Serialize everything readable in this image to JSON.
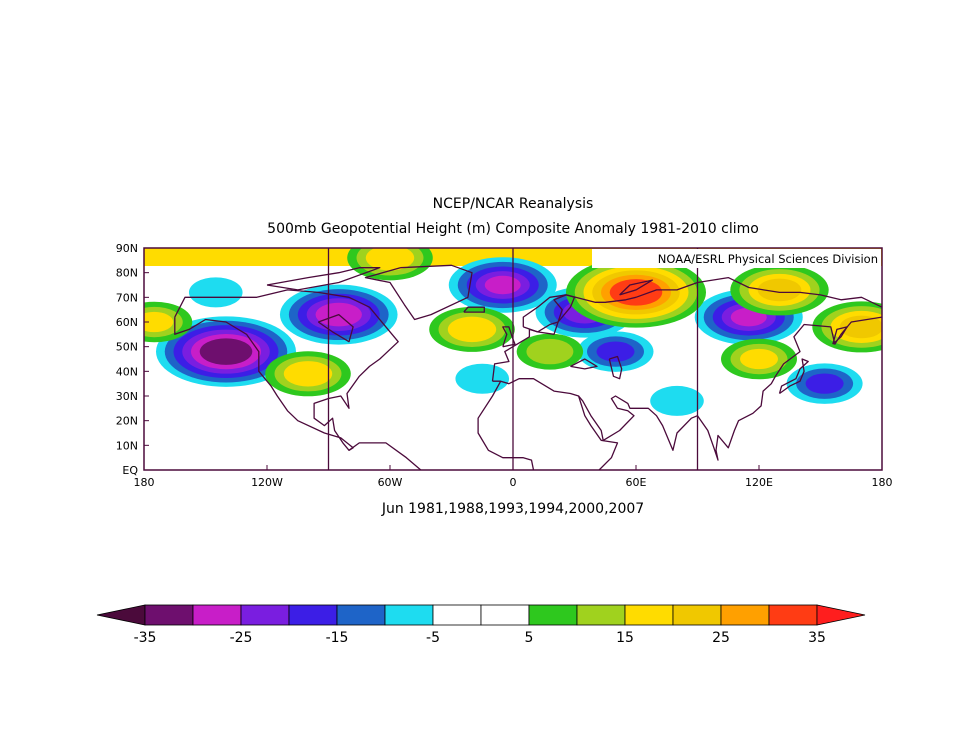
{
  "title": {
    "line1": "NCEP/NCAR Reanalysis",
    "line2": "500mb Geopotential Height (m) Composite Anomaly 1981-2010 climo"
  },
  "credit": "NOAA/ESRL Physical Sciences Division",
  "subtitle": "Jun 1981,1988,1993,1994,2000,2007",
  "map": {
    "lon_range": [
      -180,
      180
    ],
    "lat_range": [
      0,
      90
    ],
    "lat_labels": [
      "EQ",
      "10N",
      "20N",
      "30N",
      "40N",
      "50N",
      "60N",
      "70N",
      "80N",
      "90N"
    ],
    "lat_values": [
      0,
      10,
      20,
      30,
      40,
      50,
      60,
      70,
      80,
      90
    ],
    "lon_labels": [
      "180",
      "120W",
      "60W",
      "0",
      "60E",
      "120E",
      "180"
    ],
    "lon_values": [
      -180,
      -120,
      -60,
      0,
      60,
      120,
      180
    ],
    "reference_meridians": [
      -90,
      0,
      90
    ],
    "frame_color": "#4b0a3b",
    "coast_color": "#4b0a3b"
  },
  "colorbar": {
    "labels": [
      "-35",
      "-25",
      "-15",
      "-5",
      "5",
      "15",
      "25",
      "35"
    ],
    "colors": [
      "#6e0f6e",
      "#c81ec8",
      "#7a1ee0",
      "#3c1ee6",
      "#1e64c8",
      "#1edcf0",
      "#ffffff",
      "#ffffff",
      "#2ec81e",
      "#a0d21e",
      "#ffdc00",
      "#f0c800",
      "#ffa000",
      "#ff3c14"
    ],
    "low_arrow_color": "#4b0a3b",
    "high_arrow_color": "#ff1e1e"
  },
  "chart_data": {
    "type": "heatmap",
    "variable": "500mb Geopotential Height (m) Composite Anomaly",
    "units": "m",
    "color_scale": {
      "min": -35,
      "max": 35,
      "step": 5
    },
    "features": [
      {
        "kind": "negative_anomaly",
        "lon": -140,
        "lat": 48,
        "value": -35
      },
      {
        "kind": "negative_anomaly",
        "lon": -85,
        "lat": 63,
        "value": -28
      },
      {
        "kind": "negative_anomaly",
        "lon": -5,
        "lat": 75,
        "value": -25
      },
      {
        "kind": "negative_anomaly",
        "lon": 35,
        "lat": 64,
        "value": -22
      },
      {
        "kind": "negative_anomaly",
        "lon": 50,
        "lat": 48,
        "value": -15
      },
      {
        "kind": "negative_anomaly",
        "lon": 115,
        "lat": 62,
        "value": -25
      },
      {
        "kind": "negative_anomaly",
        "lon": 152,
        "lat": 35,
        "value": -15
      },
      {
        "kind": "negative_anomaly",
        "lon": 80,
        "lat": 28,
        "value": -8
      },
      {
        "kind": "negative_anomaly",
        "lon": -145,
        "lat": 72,
        "value": -8
      },
      {
        "kind": "negative_anomaly",
        "lon": -15,
        "lat": 37,
        "value": -8
      },
      {
        "kind": "positive_anomaly",
        "lon": 60,
        "lat": 72,
        "value": 35
      },
      {
        "kind": "positive_anomaly",
        "lon": -100,
        "lat": 39,
        "value": 18
      },
      {
        "kind": "positive_anomaly",
        "lon": 18,
        "lat": 48,
        "value": 12
      },
      {
        "kind": "positive_anomaly",
        "lon": -20,
        "lat": 57,
        "value": 18
      },
      {
        "kind": "positive_anomaly",
        "lon": 120,
        "lat": 45,
        "value": 15
      },
      {
        "kind": "positive_anomaly",
        "lon": 170,
        "lat": 58,
        "value": 22
      },
      {
        "kind": "positive_anomaly",
        "lon": -175,
        "lat": 60,
        "value": 15
      },
      {
        "kind": "positive_anomaly",
        "lon": 130,
        "lat": 73,
        "value": 22
      },
      {
        "kind": "positive_anomaly",
        "lon": -60,
        "lat": 86,
        "value": 18
      }
    ]
  }
}
